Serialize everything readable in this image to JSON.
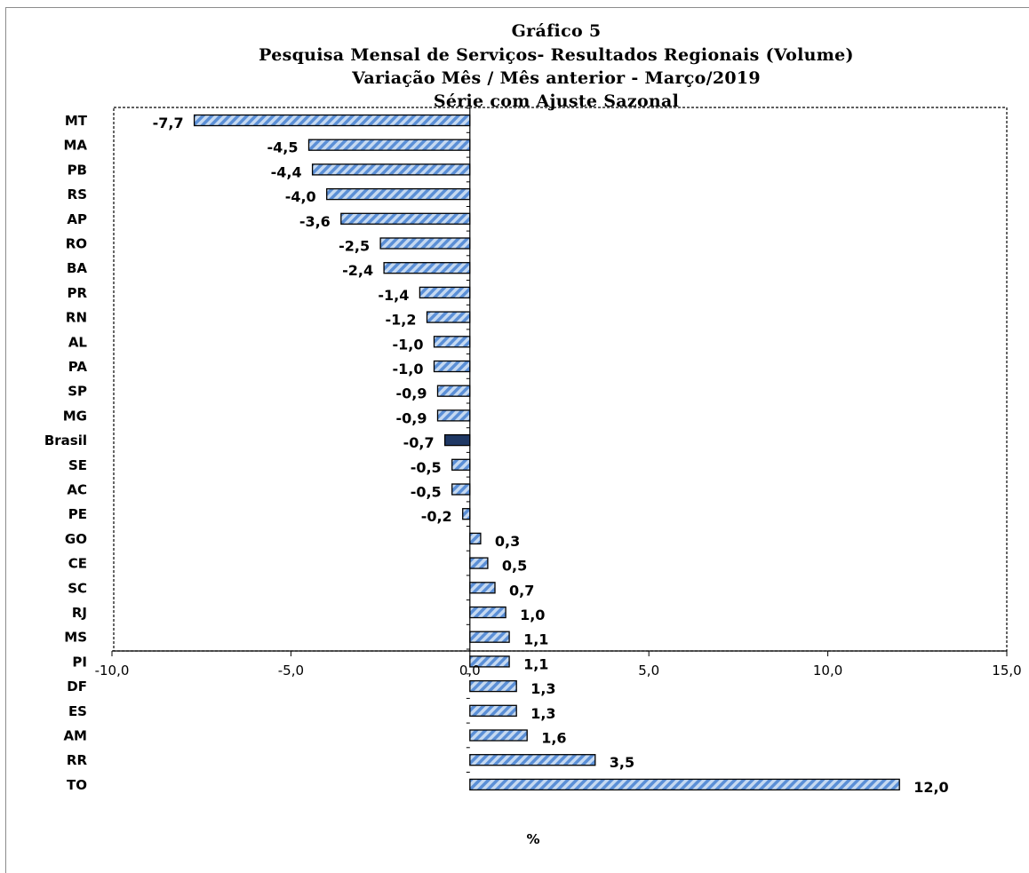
{
  "titles": {
    "line1": "Gráfico 5",
    "line2": "Pesquisa Mensal de Serviços- Resultados Regionais (Volume)",
    "line3": "Variação Mês / Mês anterior - Março/2019",
    "line4": "Série com Ajuste Sazonal"
  },
  "colors": {
    "bar_hatch_light": "#c5d9f1",
    "bar_hatch_dark": "#5b8fd6",
    "bar_border": "#000000",
    "highlight_bar": "#1f3864",
    "frame": "#8c8c8c"
  },
  "chart_data": {
    "type": "bar",
    "orientation": "horizontal",
    "title": "Gráfico 5",
    "xlabel": "%",
    "ylabel": "",
    "xlim": [
      -10,
      15
    ],
    "x_ticks": [
      -10,
      -5,
      0,
      5,
      10,
      15
    ],
    "x_tick_labels": [
      "-10,0",
      "-5,0",
      "0,0",
      "5,0",
      "10,0",
      "15,0"
    ],
    "highlight_category": "Brasil",
    "categories": [
      "MT",
      "MA",
      "PB",
      "RS",
      "AP",
      "RO",
      "BA",
      "PR",
      "RN",
      "AL",
      "PA",
      "SP",
      "MG",
      "Brasil",
      "SE",
      "AC",
      "PE",
      "GO",
      "CE",
      "SC",
      "RJ",
      "MS",
      "PI",
      "DF",
      "ES",
      "AM",
      "RR",
      "TO"
    ],
    "values": [
      -7.7,
      -4.5,
      -4.4,
      -4.0,
      -3.6,
      -2.5,
      -2.4,
      -1.4,
      -1.2,
      -1.0,
      -1.0,
      -0.9,
      -0.9,
      -0.7,
      -0.5,
      -0.5,
      -0.2,
      0.3,
      0.5,
      0.7,
      1.0,
      1.1,
      1.1,
      1.3,
      1.3,
      1.6,
      3.5,
      12.0
    ],
    "value_labels": [
      "-7,7",
      "-4,5",
      "-4,4",
      "-4,0",
      "-3,6",
      "-2,5",
      "-2,4",
      "-1,4",
      "-1,2",
      "-1,0",
      "-1,0",
      "-0,9",
      "-0,9",
      "-0,7",
      "-0,5",
      "-0,5",
      "-0,2",
      "0,3",
      "0,5",
      "0,7",
      "1,0",
      "1,1",
      "1,1",
      "1,3",
      "1,3",
      "1,6",
      "3,5",
      "12,0"
    ],
    "grid": false,
    "legend": "none"
  }
}
